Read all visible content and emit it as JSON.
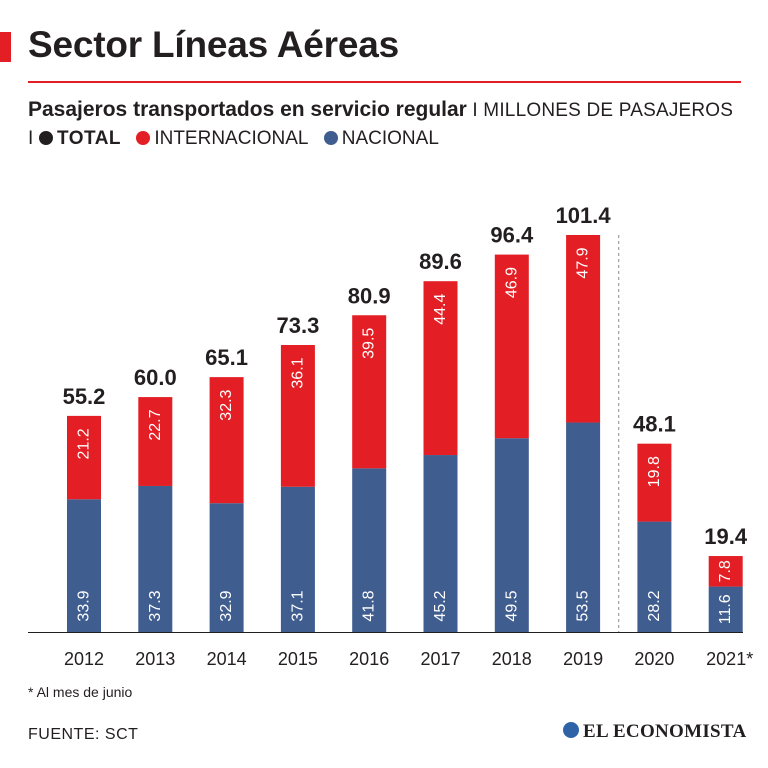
{
  "header": {
    "title": "Sector Líneas Aéreas",
    "subtitle_strong": "Pasajeros transportados en servicio regular",
    "subtitle_unit": " I MILLONES DE PASAJEROS I "
  },
  "legend": {
    "total": "TOTAL",
    "internacional": "INTERNACIONAL",
    "nacional": "NACIONAL"
  },
  "colors": {
    "accent": "#e31e24",
    "internacional": "#e31e24",
    "nacional": "#3f5d8f",
    "total": "#231f20",
    "brand": "#2f63a8"
  },
  "chart_data": {
    "type": "bar",
    "stacked": true,
    "title": "Pasajeros transportados en servicio regular",
    "unit": "Millones de pasajeros",
    "categories": [
      "2012",
      "2013",
      "2014",
      "2015",
      "2016",
      "2017",
      "2018",
      "2019",
      "2020",
      "2021*"
    ],
    "series": [
      {
        "name": "NACIONAL",
        "values": [
          33.9,
          37.3,
          32.9,
          37.1,
          41.8,
          45.2,
          49.5,
          53.5,
          28.2,
          11.6
        ]
      },
      {
        "name": "INTERNACIONAL",
        "values": [
          21.2,
          22.7,
          32.3,
          36.1,
          39.5,
          44.4,
          46.9,
          47.9,
          19.8,
          7.8
        ]
      }
    ],
    "totals": [
      55.2,
      60.0,
      65.1,
      73.3,
      80.9,
      89.6,
      96.4,
      101.4,
      48.1,
      19.4
    ],
    "value_labels": {
      "nacional": [
        "33.9",
        "37.3",
        "32.9",
        "37.1",
        "41.8",
        "45.2",
        "49.5",
        "53.5",
        "28.2",
        "11.6"
      ],
      "internacional": [
        "21.2",
        "22.7",
        "32.3",
        "36.1",
        "39.5",
        "44.4",
        "46.9",
        "47.9",
        "19.8",
        "7.8"
      ],
      "totals": [
        "55.2",
        "60.0",
        "65.1",
        "73.3",
        "80.9",
        "89.6",
        "96.4",
        "101.4",
        "48.1",
        "19.4"
      ]
    },
    "ylim": [
      0,
      101.4
    ],
    "separator_after": "2019"
  },
  "footnote": "* Al mes de junio",
  "source": "FUENTE: SCT",
  "brand": "EL ECONOMISTA"
}
